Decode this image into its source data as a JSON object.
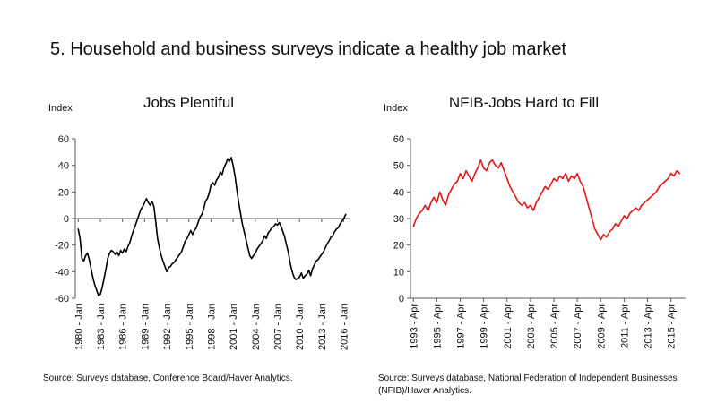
{
  "page": {
    "title": "5. Household and business surveys indicate a healthy job market"
  },
  "chart_data": [
    {
      "type": "line",
      "title": "Jobs Plentiful",
      "axis_label": "Index",
      "source": "Source: Surveys database, Conference Board/Haver Analytics.",
      "color": "#000000",
      "ylim": [
        -60,
        60
      ],
      "yticks": [
        60,
        40,
        20,
        0,
        -20,
        -40,
        -60
      ],
      "baseline": 0,
      "xlim": [
        1979.6,
        2016.9
      ],
      "xtick_values": [
        1980,
        1983,
        1986,
        1989,
        1992,
        1995,
        1998,
        2001,
        2004,
        2007,
        2010,
        2013,
        2016
      ],
      "xtick_labels": [
        "1980 - Jan",
        "1983 - Jan",
        "1986 - Jan",
        "1989 - Jan",
        "1992 - Jan",
        "1995 - Jan",
        "1998 - Jan",
        "2001 - Jan",
        "2004 - Jan",
        "2007 - Jan",
        "2010 - Jan",
        "2013 - Jan",
        "2016 - Jan"
      ],
      "series": {
        "x_start": 1980.0,
        "x_step": 0.25,
        "y": [
          -8,
          -15,
          -30,
          -32,
          -28,
          -26,
          -31,
          -38,
          -45,
          -50,
          -54,
          -58,
          -57,
          -52,
          -45,
          -38,
          -30,
          -26,
          -24,
          -25,
          -27,
          -25,
          -28,
          -24,
          -26,
          -23,
          -25,
          -21,
          -18,
          -13,
          -9,
          -5,
          -1,
          3,
          7,
          9,
          12,
          15,
          12,
          10,
          13,
          9,
          -2,
          -15,
          -22,
          -28,
          -32,
          -36,
          -40,
          -37,
          -36,
          -34,
          -33,
          -31,
          -29,
          -27,
          -25,
          -21,
          -17,
          -15,
          -12,
          -9,
          -12,
          -9,
          -7,
          -3,
          1,
          3,
          7,
          13,
          15,
          19,
          25,
          27,
          25,
          29,
          31,
          35,
          33,
          38,
          41,
          45,
          43,
          46,
          40,
          32,
          22,
          12,
          4,
          -4,
          -10,
          -16,
          -22,
          -28,
          -30,
          -28,
          -26,
          -23,
          -21,
          -19,
          -17,
          -13,
          -15,
          -11,
          -9,
          -7,
          -6,
          -4,
          -5,
          -3,
          -6,
          -10,
          -14,
          -20,
          -26,
          -34,
          -40,
          -44,
          -46,
          -45,
          -44,
          -41,
          -45,
          -43,
          -42,
          -39,
          -43,
          -38,
          -35,
          -32,
          -31,
          -29,
          -27,
          -25,
          -22,
          -19,
          -17,
          -14,
          -13,
          -10,
          -8,
          -7,
          -4,
          -2,
          0,
          3
        ]
      }
    },
    {
      "type": "line",
      "title": "NFIB-Jobs Hard to Fill",
      "axis_label": "Index",
      "source": "Source: Surveys database, National Federation of Independent Businesses (NFIB)/Haver Analytics.",
      "color": "#e51616",
      "ylim": [
        0,
        60
      ],
      "yticks": [
        60,
        50,
        40,
        30,
        20,
        10,
        0
      ],
      "baseline": 0,
      "xlim": [
        1993.0,
        2016.5
      ],
      "xtick_values": [
        1993.25,
        1995.25,
        1997.25,
        1999.25,
        2001.25,
        2003.25,
        2005.25,
        2007.25,
        2009.25,
        2011.25,
        2013.25,
        2015.25
      ],
      "xtick_labels": [
        "1993 - Apr",
        "1995 - Apr",
        "1997 - Apr",
        "1999 - Apr",
        "2001 - Apr",
        "2003 - Apr",
        "2005 - Apr",
        "2007 - Apr",
        "2009 - Apr",
        "2011 - Apr",
        "2013 - Apr",
        "2015 - Apr"
      ],
      "series": {
        "x_start": 1993.25,
        "x_step": 0.25,
        "y": [
          27,
          30,
          32,
          33,
          35,
          33,
          36,
          38,
          36,
          40,
          37,
          35,
          39,
          41,
          43,
          44,
          47,
          45,
          48,
          46,
          44,
          47,
          49,
          52,
          49,
          48,
          51,
          52,
          50,
          49,
          51,
          48,
          45,
          42,
          40,
          38,
          36,
          35,
          36,
          34,
          35,
          33,
          36,
          38,
          40,
          42,
          41,
          43,
          45,
          44,
          46,
          45,
          47,
          44,
          46,
          45,
          47,
          44,
          42,
          38,
          34,
          30,
          26,
          24,
          22,
          24,
          23,
          25,
          26,
          28,
          27,
          29,
          31,
          30,
          32,
          33,
          34,
          33,
          35,
          36,
          37,
          38,
          39,
          40,
          42,
          43,
          44,
          45,
          47,
          46,
          48,
          47
        ]
      }
    }
  ]
}
